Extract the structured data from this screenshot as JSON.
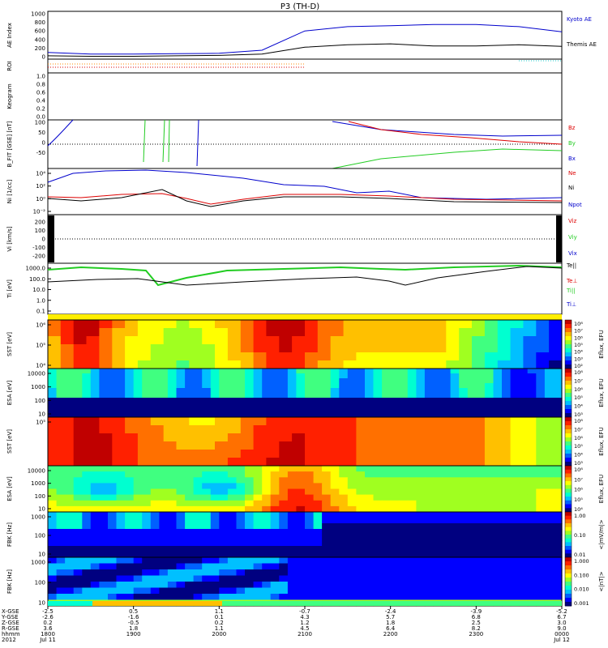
{
  "title": "P3 (TH-D)",
  "colors": {
    "blue": "#0000cc",
    "black": "#000000",
    "red": "#dd0000",
    "green": "#22cc22",
    "cyan": "#22cccc",
    "orange": "#ff8800",
    "yellow": "#ffee00"
  },
  "chart_data": [
    {
      "type": "line",
      "panel": "ae",
      "ylabel": "AE Index",
      "ylim": [
        0,
        1000
      ],
      "yticks": [
        "1000",
        "800",
        "600",
        "400",
        "200",
        "0"
      ],
      "x": [
        "1800",
        "1830",
        "1900",
        "1930",
        "2000",
        "2030",
        "2100",
        "2130",
        "2200",
        "2230",
        "2300",
        "2330",
        "0000"
      ],
      "series": [
        {
          "name": "Kyoto AE",
          "color": "blue",
          "values": [
            100,
            60,
            60,
            70,
            80,
            150,
            600,
            700,
            720,
            750,
            750,
            700,
            580
          ]
        },
        {
          "name": "Themis AE",
          "color": "black",
          "values": [
            20,
            10,
            10,
            20,
            30,
            60,
            220,
            280,
            300,
            250,
            250,
            280,
            240
          ]
        }
      ]
    },
    {
      "type": "line",
      "panel": "roi",
      "ylabel": "ROI",
      "note": "dotted flag lines"
    },
    {
      "type": "line",
      "panel": "keogram",
      "ylabel": "Keogram",
      "ylim": [
        0,
        1.0
      ],
      "yticks": [
        "1.0",
        "0.8",
        "0.6",
        "0.4",
        "0.2",
        "0.0"
      ]
    },
    {
      "type": "line",
      "panel": "bfit",
      "ylabel": "B_FIT [GSE] [nT]",
      "ylim": [
        -100,
        100
      ],
      "yticks": [
        "100",
        "50",
        "0",
        "-50"
      ],
      "series": [
        {
          "name": "Bz",
          "color": "red"
        },
        {
          "name": "By",
          "color": "green"
        },
        {
          "name": "Bx",
          "color": "blue"
        }
      ]
    },
    {
      "type": "line",
      "panel": "density",
      "ylabel": "Ni [1/cc]",
      "yticks": [
        "10⁴",
        "10²",
        "10⁰",
        "10⁻²"
      ],
      "series": [
        {
          "name": "Ne",
          "color": "red"
        },
        {
          "name": "Ni",
          "color": "black"
        },
        {
          "name": "Npot",
          "color": "blue"
        }
      ]
    },
    {
      "type": "line",
      "panel": "velocity",
      "ylabel": "Vi [km/s]",
      "ylim": [
        -250,
        250
      ],
      "yticks": [
        "200",
        "100",
        "0",
        "-100",
        "-200"
      ],
      "series": [
        {
          "name": "Viz",
          "color": "red"
        },
        {
          "name": "Viy",
          "color": "green"
        },
        {
          "name": "Vix",
          "color": "blue"
        }
      ]
    },
    {
      "type": "line",
      "panel": "temperature",
      "ylabel": "Ti [eV]",
      "yticks": [
        "1000.0",
        "100.0",
        "10.0",
        "1.0",
        "0.1"
      ],
      "series": [
        {
          "name": "Te||",
          "color": "black"
        },
        {
          "name": "Te⊥",
          "color": "red"
        },
        {
          "name": "Ti||",
          "color": "green"
        },
        {
          "name": "Ti⊥",
          "color": "blue"
        }
      ]
    },
    {
      "type": "heatmap",
      "panel": "sst1",
      "ylabel": "SST [eV]",
      "yticks": [
        "10⁶",
        "10⁵",
        "10⁴"
      ],
      "colorbar_label": "Eflux, EFU",
      "colorbar_ticks": [
        "10⁸",
        "10⁷",
        "10⁶",
        "10⁵",
        "10⁴",
        "10³",
        "10²"
      ]
    },
    {
      "type": "heatmap",
      "panel": "esa1",
      "ylabel": "ESA [eV]",
      "yticks": [
        "10000",
        "1000",
        "100",
        "10"
      ],
      "colorbar_label": "Eflux, EFU",
      "colorbar_ticks": [
        "10⁸",
        "10⁷",
        "10⁶",
        "10⁵",
        "10⁴",
        "10³"
      ]
    },
    {
      "type": "heatmap",
      "panel": "sst2",
      "ylabel": "SST [eV]",
      "yticks": [
        "10⁵"
      ],
      "colorbar_label": "Eflux, EFU",
      "colorbar_ticks": [
        "10⁸",
        "10⁷",
        "10⁶",
        "10⁵",
        "10⁴",
        "10³"
      ]
    },
    {
      "type": "heatmap",
      "panel": "esa2",
      "ylabel": "ESA [eV]",
      "yticks": [
        "10000",
        "1000",
        "100",
        "10"
      ],
      "colorbar_label": "Eflux, EFU",
      "colorbar_ticks": [
        "10⁸",
        "10⁷",
        "10⁶",
        "10⁵",
        "10⁴"
      ]
    },
    {
      "type": "heatmap",
      "panel": "fbk1",
      "ylabel": "FBK [Hz]",
      "yticks": [
        "1000",
        "100",
        "10"
      ],
      "colorbar_label": "<|mV/m|>",
      "colorbar_ticks": [
        "1.00",
        "0.10",
        "0.01"
      ]
    },
    {
      "type": "heatmap",
      "panel": "fbk2",
      "ylabel": "FBK [Hz]",
      "yticks": [
        "1000",
        "100",
        "10"
      ],
      "colorbar_label": "<|nT|>",
      "colorbar_ticks": [
        "1.000",
        "0.100",
        "0.010",
        "0.001"
      ]
    }
  ],
  "xaxis": {
    "row_labels": [
      "X-GSE",
      "Y-GSE",
      "Z-GSE",
      "R-GSE",
      "hhmm",
      "2012"
    ],
    "columns": [
      {
        "vals": [
          "-2.5",
          "-2.6",
          "0.2",
          "3.6",
          "1800",
          "Jul 11"
        ]
      },
      {
        "vals": [
          "0.5",
          "-1.6",
          "-0.5",
          "1.8",
          "1900",
          ""
        ]
      },
      {
        "vals": [
          "1.1",
          "0.1",
          "0.2",
          "1.1",
          "2000",
          ""
        ]
      },
      {
        "vals": [
          "-0.7",
          "4.3",
          "1.2",
          "4.5",
          "2100",
          ""
        ]
      },
      {
        "vals": [
          "-2.4",
          "5.7",
          "1.8",
          "6.4",
          "2200",
          ""
        ]
      },
      {
        "vals": [
          "-3.9",
          "6.8",
          "2.5",
          "8.2",
          "2300",
          ""
        ]
      },
      {
        "vals": [
          "-5.2",
          "6.7",
          "3.0",
          "9.0",
          "0000",
          "Jul 12"
        ]
      }
    ]
  }
}
